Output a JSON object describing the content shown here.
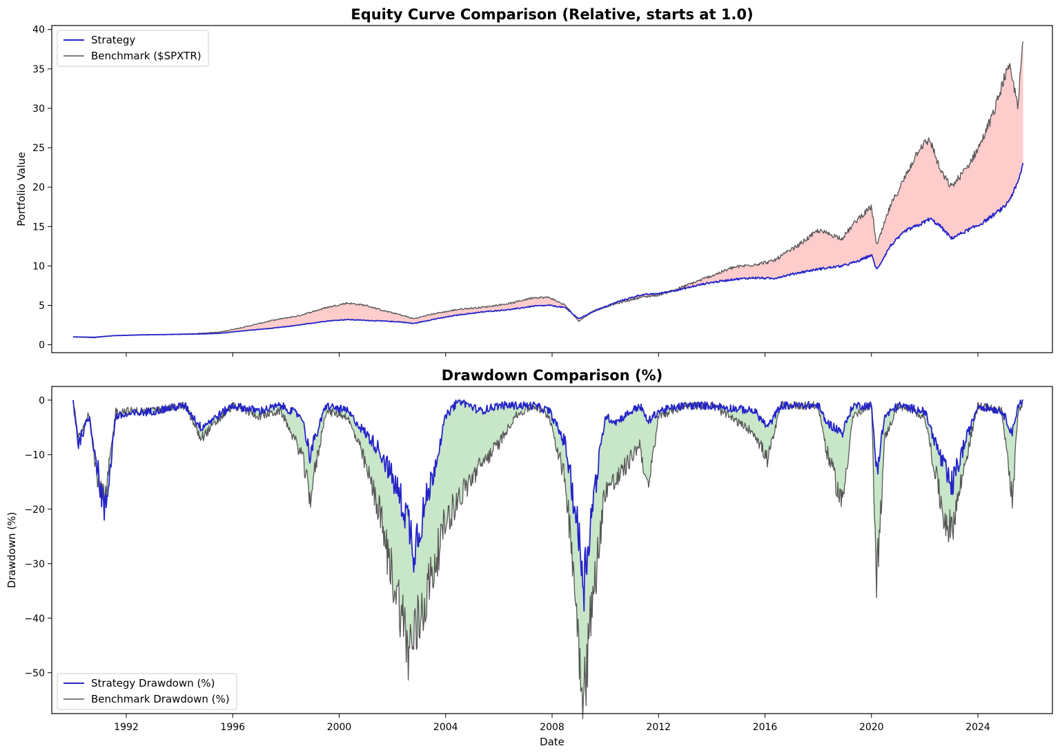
{
  "chart_data": [
    {
      "type": "line",
      "title": "Equity Curve Comparison (Relative, starts at 1.0)",
      "xlabel": "",
      "ylabel": "Portfolio Value",
      "xlim": [
        1989.2,
        2026.8
      ],
      "ylim": [
        -1.0,
        40.5
      ],
      "yticks": [
        0,
        5,
        10,
        15,
        20,
        25,
        30,
        35,
        40
      ],
      "legend_position": "upper-left",
      "grid": false,
      "fill_between": {
        "description_color": "#ffcccc"
      },
      "series": [
        {
          "name": "Strategy",
          "color": "#2424c8",
          "x": [
            1990.0,
            1990.8,
            1991.5,
            1992.5,
            1993.5,
            1994.5,
            1995.5,
            1996.5,
            1997.5,
            1998.5,
            1999.5,
            2000.3,
            2001.0,
            2001.7,
            2002.3,
            2002.8,
            2003.5,
            2004.5,
            2005.5,
            2006.5,
            2007.3,
            2007.9,
            2008.5,
            2009.0,
            2009.6,
            2010.5,
            2011.3,
            2012.0,
            2012.8,
            2013.8,
            2014.8,
            2015.6,
            2016.3,
            2017.2,
            2018.0,
            2018.9,
            2019.5,
            2020.0,
            2020.2,
            2020.7,
            2021.3,
            2021.8,
            2022.2,
            2022.6,
            2023.0,
            2023.6,
            2024.1,
            2024.6,
            2025.0,
            2025.2,
            2025.5,
            2025.7
          ],
          "values": [
            1.0,
            0.95,
            1.15,
            1.25,
            1.3,
            1.35,
            1.45,
            1.8,
            2.1,
            2.5,
            3.0,
            3.2,
            3.1,
            3.0,
            2.9,
            2.7,
            3.2,
            3.8,
            4.2,
            4.5,
            4.9,
            5.0,
            4.7,
            3.3,
            4.3,
            5.5,
            6.3,
            6.5,
            7.0,
            7.8,
            8.3,
            8.5,
            8.4,
            9.1,
            9.6,
            10.0,
            10.6,
            11.4,
            9.5,
            12.5,
            14.5,
            15.2,
            16.0,
            15.0,
            13.5,
            14.5,
            15.3,
            16.5,
            17.5,
            18.5,
            20.5,
            23.0
          ]
        },
        {
          "name": "Benchmark ($SPXTR)",
          "color": "#555555",
          "x": [
            1990.0,
            1990.8,
            1991.5,
            1992.5,
            1993.5,
            1994.5,
            1995.5,
            1996.5,
            1997.5,
            1998.5,
            1999.5,
            2000.3,
            2001.0,
            2001.7,
            2002.3,
            2002.8,
            2003.5,
            2004.5,
            2005.5,
            2006.5,
            2007.3,
            2007.9,
            2008.5,
            2009.0,
            2009.6,
            2010.5,
            2011.3,
            2012.0,
            2012.8,
            2013.8,
            2014.8,
            2015.6,
            2016.3,
            2017.2,
            2018.0,
            2018.9,
            2019.5,
            2020.0,
            2020.2,
            2020.7,
            2021.3,
            2021.8,
            2022.2,
            2022.6,
            2023.0,
            2023.6,
            2024.1,
            2024.6,
            2025.0,
            2025.2,
            2025.5,
            2025.7
          ],
          "values": [
            1.0,
            0.9,
            1.15,
            1.25,
            1.3,
            1.4,
            1.6,
            2.3,
            3.1,
            3.7,
            4.7,
            5.3,
            5.0,
            4.3,
            3.8,
            3.3,
            3.9,
            4.5,
            4.8,
            5.3,
            6.0,
            6.0,
            5.0,
            3.0,
            4.4,
            5.3,
            6.0,
            6.3,
            7.2,
            8.5,
            9.8,
            10.2,
            10.6,
            12.5,
            14.5,
            13.5,
            16.0,
            17.5,
            12.5,
            17.5,
            21.5,
            25.0,
            26.0,
            22.0,
            20.0,
            22.5,
            25.5,
            29.5,
            34.0,
            35.0,
            30.5,
            38.5
          ]
        }
      ]
    },
    {
      "type": "line",
      "title": "Drawdown Comparison (%)",
      "xlabel": "Date",
      "ylabel": "Drawdown (%)",
      "xlim": [
        1989.2,
        2026.8
      ],
      "ylim": [
        -57.5,
        2.5
      ],
      "yticks": [
        0,
        -10,
        -20,
        -30,
        -40,
        -50
      ],
      "xticks": [
        1992,
        1996,
        2000,
        2004,
        2008,
        2012,
        2016,
        2020,
        2024
      ],
      "legend_position": "lower-left",
      "grid": false,
      "series": [
        {
          "name": "Strategy Drawdown (%)",
          "color": "#2424c8",
          "x": [
            1990.0,
            1990.2,
            1990.6,
            1990.9,
            1991.2,
            1991.6,
            1993.0,
            1994.2,
            1994.8,
            1996.0,
            1997.0,
            1997.8,
            1998.6,
            1998.9,
            1999.5,
            2000.3,
            2000.8,
            2001.5,
            2001.8,
            2002.3,
            2002.6,
            2002.8,
            2003.2,
            2003.6,
            2004.0,
            2004.5,
            2005.3,
            2006.0,
            2006.6,
            2007.3,
            2007.9,
            2008.5,
            2008.8,
            2009.0,
            2009.2,
            2009.5,
            2010.0,
            2010.4,
            2011.3,
            2011.6,
            2012.0,
            2013.0,
            2014.0,
            2015.6,
            2016.1,
            2016.6,
            2018.0,
            2018.3,
            2018.9,
            2019.3,
            2020.0,
            2020.2,
            2020.5,
            2021.0,
            2022.0,
            2022.7,
            2023.0,
            2023.5,
            2024.0,
            2024.9,
            2025.3,
            2025.5,
            2025.7
          ],
          "values": [
            0.0,
            -8.0,
            -3.0,
            -12.0,
            -21.0,
            -3.0,
            -2.0,
            -1.0,
            -5.0,
            -1.0,
            -2.0,
            -1.0,
            -3.0,
            -10.0,
            -1.0,
            -2.0,
            -5.0,
            -9.0,
            -12.0,
            -18.0,
            -22.0,
            -27.0,
            -20.0,
            -12.0,
            -3.0,
            0.0,
            -2.0,
            -1.0,
            -1.0,
            -1.0,
            -2.0,
            -8.0,
            -18.0,
            -25.0,
            -33.0,
            -20.0,
            -3.0,
            -4.0,
            -1.0,
            -4.0,
            -2.0,
            -1.0,
            -1.0,
            -2.0,
            -5.0,
            -1.0,
            -1.0,
            -4.0,
            -6.0,
            -1.0,
            -1.0,
            -13.0,
            -3.0,
            -1.0,
            -2.0,
            -12.0,
            -16.0,
            -8.0,
            -1.0,
            -2.0,
            -6.0,
            -1.0,
            0.0
          ]
        },
        {
          "name": "Benchmark Drawdown (%)",
          "color": "#555555",
          "x": [
            1990.0,
            1990.2,
            1990.6,
            1990.9,
            1991.2,
            1991.6,
            1993.0,
            1994.2,
            1994.8,
            1996.0,
            1997.0,
            1997.8,
            1998.6,
            1998.9,
            1999.5,
            2000.3,
            2000.8,
            2001.5,
            2001.8,
            2002.3,
            2002.6,
            2002.8,
            2003.2,
            2003.6,
            2004.0,
            2004.5,
            2005.3,
            2006.0,
            2006.6,
            2007.3,
            2007.9,
            2008.5,
            2008.8,
            2009.0,
            2009.2,
            2009.5,
            2010.0,
            2010.4,
            2011.3,
            2011.6,
            2012.0,
            2013.0,
            2014.0,
            2015.6,
            2016.1,
            2016.6,
            2018.0,
            2018.3,
            2018.9,
            2019.3,
            2020.0,
            2020.2,
            2020.5,
            2021.0,
            2022.0,
            2022.7,
            2023.0,
            2023.5,
            2024.0,
            2024.9,
            2025.3,
            2025.5,
            2025.7
          ],
          "values": [
            0.0,
            -7.0,
            -2.0,
            -14.0,
            -19.0,
            -2.0,
            -2.0,
            -1.0,
            -7.0,
            -1.0,
            -3.0,
            -2.0,
            -10.0,
            -18.0,
            -2.0,
            -3.0,
            -9.0,
            -20.0,
            -28.0,
            -38.0,
            -46.0,
            -44.0,
            -37.0,
            -30.0,
            -22.0,
            -18.0,
            -12.0,
            -8.0,
            -3.0,
            -1.0,
            -3.0,
            -15.0,
            -30.0,
            -45.0,
            -53.0,
            -38.0,
            -16.0,
            -15.0,
            -8.0,
            -17.0,
            -3.0,
            -1.0,
            -1.0,
            -6.0,
            -11.0,
            -1.0,
            -1.0,
            -9.0,
            -19.0,
            -3.0,
            -1.0,
            -33.0,
            -7.0,
            -1.0,
            -3.0,
            -21.0,
            -24.0,
            -12.0,
            -1.0,
            -2.0,
            -18.0,
            -3.0,
            0.0
          ]
        }
      ]
    }
  ],
  "colors": {
    "strategy": "#2424c8",
    "benchmark": "#555555",
    "fill_under": "#ffcccc",
    "fill_strategy_better": "#c8e6c8"
  }
}
